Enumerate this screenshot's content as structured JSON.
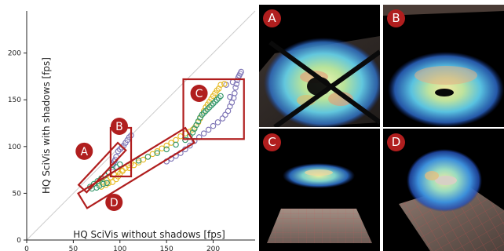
{
  "chart_data": {
    "type": "scatter",
    "xlabel": "HQ SciVis without shadows [fps]",
    "ylabel": "HQ SciVis with shadows [fps]",
    "xlim": [
      0,
      245
    ],
    "ylim": [
      0,
      245
    ],
    "xticks": [
      0,
      50,
      100,
      150,
      200
    ],
    "yticks": [
      0,
      50,
      100,
      150,
      200
    ],
    "diagonal": true,
    "series": [
      {
        "color": "#7b72b4",
        "points": [
          [
            92,
            78
          ],
          [
            93,
            81
          ],
          [
            94,
            84
          ],
          [
            95,
            86
          ],
          [
            96,
            89
          ],
          [
            98,
            95
          ],
          [
            100,
            97
          ],
          [
            102,
            99
          ],
          [
            104,
            101
          ],
          [
            106,
            104
          ],
          [
            108,
            107
          ],
          [
            110,
            110
          ],
          [
            112,
            112
          ],
          [
            150,
            84
          ],
          [
            155,
            87
          ],
          [
            160,
            90
          ],
          [
            165,
            93
          ],
          [
            170,
            97
          ],
          [
            175,
            101
          ],
          [
            180,
            106
          ],
          [
            185,
            110
          ],
          [
            190,
            114
          ],
          [
            195,
            118
          ],
          [
            200,
            122
          ],
          [
            205,
            126
          ],
          [
            210,
            130
          ],
          [
            213,
            134
          ],
          [
            216,
            138
          ],
          [
            218,
            143
          ],
          [
            220,
            147
          ],
          [
            222,
            152
          ],
          [
            223,
            157
          ],
          [
            224,
            163
          ],
          [
            225,
            167
          ],
          [
            226,
            171
          ],
          [
            227,
            174
          ],
          [
            228,
            176
          ],
          [
            229,
            178
          ],
          [
            230,
            180
          ],
          [
            214,
            166
          ],
          [
            221,
            169
          ],
          [
            218,
            153
          ]
        ]
      },
      {
        "color": "#e6b81f",
        "points": [
          [
            78,
            60
          ],
          [
            82,
            62
          ],
          [
            86,
            64
          ],
          [
            90,
            67
          ],
          [
            94,
            70
          ],
          [
            98,
            73
          ],
          [
            102,
            74
          ],
          [
            110,
            77
          ],
          [
            115,
            80
          ],
          [
            120,
            83
          ],
          [
            125,
            86
          ],
          [
            130,
            89
          ],
          [
            135,
            92
          ],
          [
            140,
            95
          ],
          [
            145,
            98
          ],
          [
            150,
            101
          ],
          [
            155,
            104
          ],
          [
            160,
            107
          ],
          [
            165,
            111
          ],
          [
            170,
            114
          ],
          [
            175,
            116
          ],
          [
            178,
            118
          ],
          [
            180,
            120
          ],
          [
            182,
            123
          ],
          [
            184,
            126
          ],
          [
            186,
            130
          ],
          [
            188,
            134
          ],
          [
            190,
            138
          ],
          [
            192,
            142
          ],
          [
            194,
            145
          ],
          [
            196,
            148
          ],
          [
            198,
            151
          ],
          [
            200,
            154
          ],
          [
            202,
            157
          ],
          [
            204,
            160
          ],
          [
            206,
            162
          ],
          [
            208,
            166
          ],
          [
            212,
            167
          ],
          [
            80,
            57
          ],
          [
            85,
            59
          ],
          [
            88,
            61
          ],
          [
            92,
            62
          ],
          [
            96,
            65
          ],
          [
            98,
            68
          ],
          [
            100,
            71
          ],
          [
            103,
            74
          ],
          [
            106,
            77
          ],
          [
            109,
            80
          ],
          [
            112,
            82
          ]
        ]
      },
      {
        "color": "#2e9467",
        "points": [
          [
            68,
            57
          ],
          [
            72,
            60
          ],
          [
            76,
            63
          ],
          [
            80,
            66
          ],
          [
            84,
            69
          ],
          [
            88,
            72
          ],
          [
            92,
            75
          ],
          [
            96,
            78
          ],
          [
            100,
            81
          ],
          [
            120,
            85
          ],
          [
            130,
            89
          ],
          [
            140,
            93
          ],
          [
            150,
            97
          ],
          [
            160,
            102
          ],
          [
            170,
            107
          ],
          [
            175,
            111
          ],
          [
            178,
            115
          ],
          [
            180,
            119
          ],
          [
            182,
            123
          ],
          [
            184,
            127
          ],
          [
            186,
            131
          ],
          [
            188,
            134
          ],
          [
            190,
            136
          ],
          [
            192,
            138
          ],
          [
            194,
            140
          ],
          [
            196,
            142
          ],
          [
            198,
            144
          ],
          [
            200,
            146
          ],
          [
            202,
            148
          ],
          [
            204,
            150
          ],
          [
            206,
            152
          ],
          [
            208,
            154
          ],
          [
            70,
            55
          ],
          [
            75,
            56
          ],
          [
            78,
            58
          ],
          [
            82,
            60
          ],
          [
            86,
            61
          ]
        ]
      }
    ],
    "annotations": [
      {
        "label": "A",
        "x": [
          60,
          102
        ],
        "y": [
          55,
          100
        ]
      },
      {
        "label": "B",
        "x": [
          90,
          112
        ],
        "y": [
          68,
          120
        ]
      },
      {
        "label": "C",
        "x": [
          168,
          233
        ],
        "y": [
          108,
          172
        ]
      },
      {
        "label": "D",
        "x": [
          60,
          175
        ],
        "y": [
          42,
          112
        ]
      }
    ]
  },
  "panels": [
    {
      "label": "A"
    },
    {
      "label": "B"
    },
    {
      "label": "C"
    },
    {
      "label": "D"
    }
  ],
  "colors": {
    "badge": "#b01e1e",
    "annotation_box": "#b01e1e",
    "diagonal": "#cccccc",
    "axis": "#222222"
  }
}
